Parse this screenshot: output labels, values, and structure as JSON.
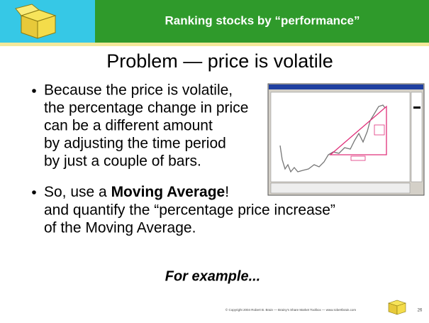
{
  "header": {
    "title": "Ranking stocks by “performance”"
  },
  "heading": "Problem — price is volatile",
  "bullets": [
    {
      "lines": [
        "Because the price is volatile,",
        "the percentage change in price",
        "can be a different amount",
        "by adjusting the time period",
        "by just a couple of bars."
      ]
    },
    {
      "lead": "So, use a ",
      "emphasis": "Moving Average",
      "tail": "!",
      "lines": [
        "and quantify the “percentage price increase”",
        "of the Moving Average."
      ]
    }
  ],
  "example": "For example...",
  "footer": {
    "copyright": "© Copyright 2004 Robert B. Brain — Brainy's Share Market Toolbox — www.robertbrain.com",
    "page": "26"
  }
}
